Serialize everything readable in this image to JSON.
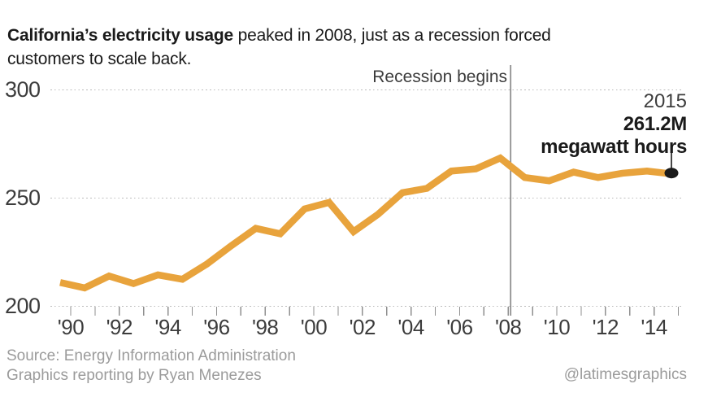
{
  "header": {
    "title_bold": "California’s electricity usage",
    "title_regular_line1": " peaked in 2008, just as a recession forced",
    "title_line2": "customers to scale back."
  },
  "annotations": {
    "recession_label": "Recession begins",
    "endpoint_year": "2015",
    "endpoint_value": "261.2M",
    "endpoint_unit": "megawatt hours"
  },
  "footer": {
    "source_line1": "Source: Energy Information Administration",
    "source_line2": "Graphics reporting by Ryan Menezes",
    "credit": "@latimesgraphics"
  },
  "colors": {
    "line": "#E8A33C",
    "dot": "#1a1a1a",
    "grid": "#bcbcbc",
    "tick": "#8f8f8f",
    "recession_line": "#8f8f8f",
    "axis_text": "#3c3c3c",
    "muted_text": "#9b9b9b"
  },
  "chart_data": {
    "type": "line",
    "title": "California's electricity usage peaked in 2008, just as a recession forced customers to scale back.",
    "series_name": "California electricity usage",
    "unit": "million megawatt hours",
    "x": [
      1990,
      1991,
      1992,
      1993,
      1994,
      1995,
      1996,
      1997,
      1998,
      1999,
      2000,
      2001,
      2002,
      2003,
      2004,
      2005,
      2006,
      2007,
      2008,
      2009,
      2010,
      2011,
      2012,
      2013,
      2014,
      2015
    ],
    "values": [
      211,
      208.5,
      214,
      210.5,
      214.5,
      212.5,
      219.5,
      228,
      236,
      233.5,
      245,
      248,
      234.5,
      242.5,
      252.5,
      254.5,
      262.5,
      263.5,
      268.5,
      259.5,
      258,
      262,
      259.5,
      261.5,
      262.5,
      261.2
    ],
    "ylim": [
      200,
      300
    ],
    "y_ticks": [
      200,
      250,
      300
    ],
    "x_tick_labels": [
      {
        "year": 1990,
        "label": "'90"
      },
      {
        "year": 1992,
        "label": "'92"
      },
      {
        "year": 1994,
        "label": "'94"
      },
      {
        "year": 1996,
        "label": "'96"
      },
      {
        "year": 1998,
        "label": "'98"
      },
      {
        "year": 2000,
        "label": "'00"
      },
      {
        "year": 2002,
        "label": "'02"
      },
      {
        "year": 2004,
        "label": "'04"
      },
      {
        "year": 2006,
        "label": "'06"
      },
      {
        "year": 2008,
        "label": "'08"
      },
      {
        "year": 2010,
        "label": "'10"
      },
      {
        "year": 2012,
        "label": "'12"
      },
      {
        "year": 2014,
        "label": "'14"
      }
    ],
    "grid": "horizontal-dotted",
    "legend": "none",
    "annotations": [
      {
        "type": "vline",
        "x": 2008.1,
        "label": "Recession begins"
      },
      {
        "type": "point",
        "x": 2015,
        "y": 261.2,
        "label": "2015 261.2M megawatt hours"
      }
    ]
  }
}
